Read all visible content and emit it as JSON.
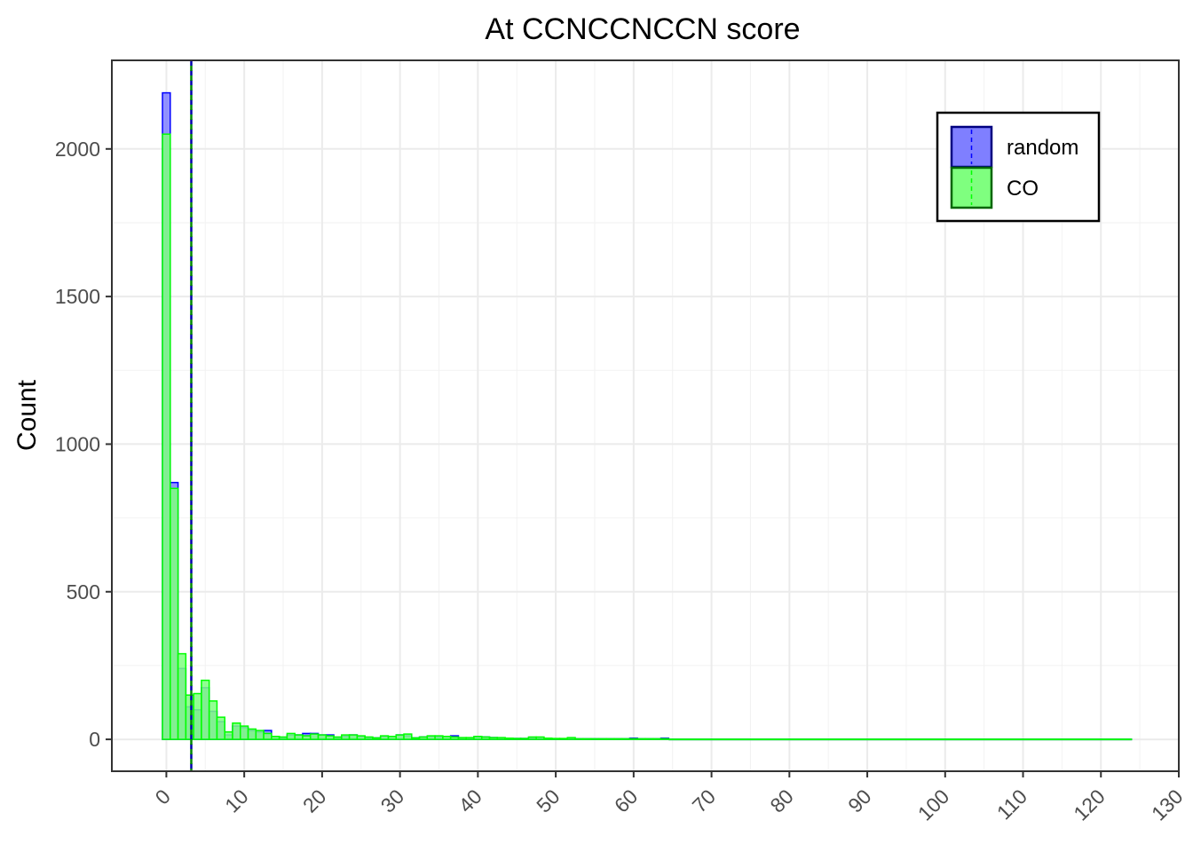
{
  "chart_data": {
    "type": "bar",
    "title": "At CCNCCNCCN score",
    "xlabel": "",
    "ylabel": "Count",
    "xlim": [
      -7,
      130
    ],
    "ylim": [
      -108,
      2300
    ],
    "x_ticks": [
      0,
      10,
      20,
      30,
      40,
      50,
      60,
      70,
      80,
      90,
      100,
      110,
      120,
      130
    ],
    "y_ticks": [
      0,
      500,
      1000,
      1500,
      2000
    ],
    "grid": true,
    "legend_position": "top-right",
    "bin_width": 1,
    "bin_centers": [
      0,
      1,
      2,
      3,
      4,
      5,
      6,
      7,
      8,
      9,
      10,
      11,
      12,
      13,
      14,
      15,
      16,
      17,
      18,
      19,
      20,
      21,
      22,
      23,
      24,
      25,
      26,
      27,
      28,
      29,
      30,
      31,
      32,
      33,
      34,
      35,
      36,
      37,
      38,
      39,
      40,
      41,
      42,
      43,
      44,
      45,
      46,
      47,
      48,
      49,
      50,
      51,
      52,
      53,
      54,
      55,
      56,
      57,
      58,
      59,
      60,
      61,
      62,
      63,
      64
    ],
    "x_max_extent": 124,
    "series": [
      {
        "name": "random",
        "color": "#0000ff",
        "fill": "#7f7fff",
        "mean_line": 3.2,
        "values": [
          2190,
          870,
          240,
          110,
          100,
          175,
          95,
          60,
          15,
          45,
          40,
          30,
          25,
          30,
          10,
          5,
          15,
          15,
          20,
          20,
          15,
          15,
          5,
          10,
          15,
          10,
          5,
          5,
          10,
          10,
          15,
          12,
          5,
          8,
          10,
          8,
          10,
          12,
          5,
          5,
          8,
          8,
          6,
          5,
          4,
          3,
          3,
          4,
          3,
          3,
          2,
          2,
          3,
          2,
          2,
          2,
          2,
          2,
          2,
          2,
          4,
          2,
          2,
          2,
          4
        ]
      },
      {
        "name": "CO",
        "color": "#00ff00",
        "fill": "#7fff7f",
        "mean_line": 3.2,
        "values": [
          2050,
          850,
          290,
          150,
          155,
          200,
          130,
          75,
          25,
          55,
          45,
          35,
          30,
          20,
          10,
          8,
          20,
          15,
          12,
          18,
          15,
          12,
          8,
          15,
          15,
          12,
          8,
          5,
          12,
          10,
          15,
          18,
          5,
          8,
          12,
          12,
          10,
          8,
          6,
          6,
          10,
          8,
          6,
          6,
          4,
          3,
          3,
          8,
          8,
          4,
          3,
          3,
          6,
          2,
          2,
          2,
          2,
          2,
          2,
          2,
          2,
          2,
          2,
          2,
          2
        ]
      }
    ]
  }
}
